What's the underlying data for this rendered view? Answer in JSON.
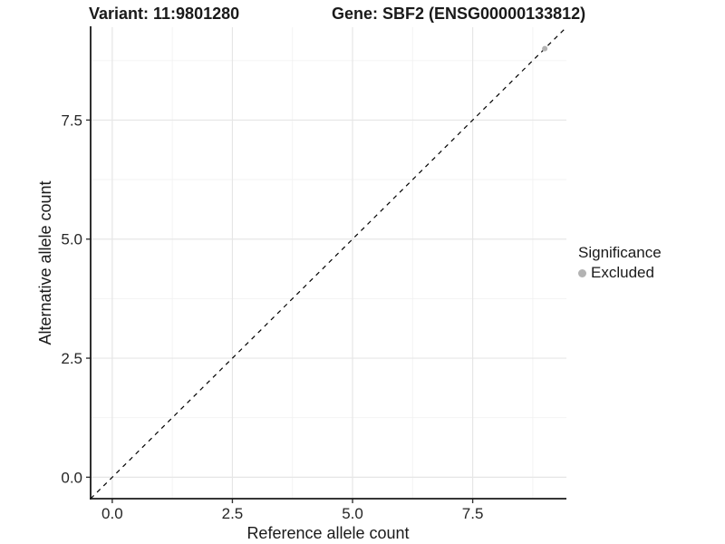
{
  "chart_data": {
    "type": "scatter",
    "title_left": "Variant: 11:9801280",
    "title_right": "Gene: SBF2 (ENSG00000133812)",
    "xlabel": "Reference allele count",
    "ylabel": "Alternative allele count",
    "xlim": [
      -0.45,
      9.45
    ],
    "ylim": [
      -0.45,
      9.45
    ],
    "x_ticks": [
      0.0,
      2.5,
      5.0,
      7.5
    ],
    "y_ticks": [
      0.0,
      2.5,
      5.0,
      7.5
    ],
    "x_tick_labels": [
      "0.0",
      "2.5",
      "5.0",
      "7.5"
    ],
    "y_tick_labels": [
      "0.0",
      "2.5",
      "5.0",
      "7.5"
    ],
    "minor_ticks": [
      1.25,
      3.75,
      6.25,
      8.75
    ],
    "grid": true,
    "legend_position": "right",
    "reference_line": {
      "slope": 1,
      "intercept": 0,
      "style": "dashed",
      "color": "#000000"
    },
    "series": [
      {
        "name": "Excluded",
        "color": "#b3b3b3",
        "points": [
          {
            "x": 9,
            "y": 9
          }
        ]
      }
    ],
    "legend": {
      "title": "Significance",
      "entries": [
        {
          "label": "Excluded",
          "color": "#b3b3b3"
        }
      ]
    },
    "colors": {
      "background": "#ffffff",
      "grid_major": "#e6e6e6",
      "grid_minor": "#f2f2f2",
      "axis_line": "#1a1a1a",
      "tick_mark": "#333333",
      "point": "#b3b3b3",
      "reference_line": "#000000"
    }
  }
}
